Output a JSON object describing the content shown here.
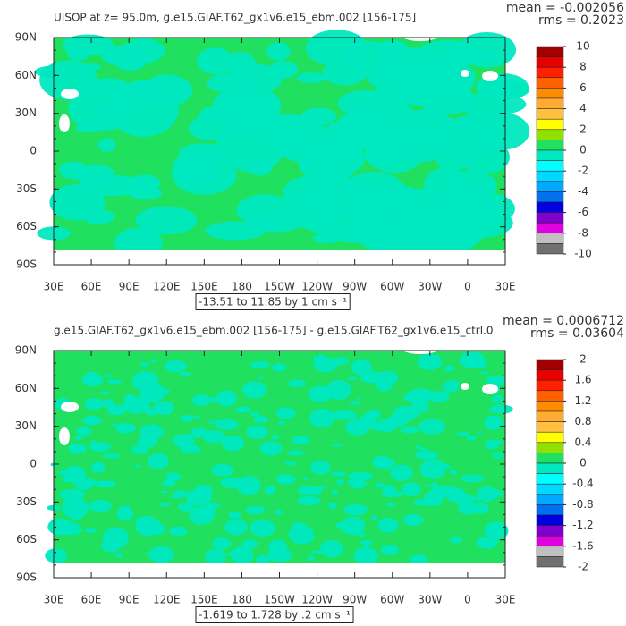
{
  "lat_labels": [
    "90N",
    "60N",
    "30N",
    "0",
    "30S",
    "60S",
    "90S"
  ],
  "lon_labels": [
    "30E",
    "60E",
    "90E",
    "120E",
    "150E",
    "180",
    "150W",
    "120W",
    "90W",
    "60W",
    "30W",
    "0",
    "30E"
  ],
  "colorbar_colors": [
    "#a00000",
    "#e60000",
    "#ff2000",
    "#ff6000",
    "#ff8c00",
    "#ffaa30",
    "#ffc040",
    "#ffff00",
    "#90e000",
    "#20e060",
    "#00e8c0",
    "#00ffff",
    "#00d8ff",
    "#00a8ff",
    "#0070f0",
    "#0000e0",
    "#8000d0",
    "#e000e0",
    "#c0c0c0",
    "#707070"
  ],
  "panels": [
    {
      "title": "UISOP at z=  95.0m, g.e15.GIAF.T62_gx1v6.e15_ebm.002 [156-175]",
      "mean": "mean = -0.002056",
      "rms": "rms = 0.2023",
      "range": "-13.51 to 11.85 by 1 cm s⁻¹",
      "colorbar_lim": [
        -10,
        10
      ],
      "colorbar_ticks": [
        10,
        8,
        6,
        4,
        2,
        0,
        -2,
        -4,
        -6,
        -8,
        -10
      ]
    },
    {
      "title": "g.e15.GIAF.T62_gx1v6.e15_ebm.002 [156-175] - g.e15.GIAF.T62_gx1v6.e15_ctrl.0",
      "mean": "mean = 0.0006712",
      "rms": "rms = 0.03604",
      "range": "-1.619 to 1.728 by .2 cm s⁻¹",
      "colorbar_lim": [
        -2,
        2
      ],
      "colorbar_ticks": [
        2,
        1.6,
        1.2,
        0.8,
        0.4,
        0,
        -0.4,
        -0.8,
        -1.2,
        -1.6,
        -2
      ]
    }
  ]
}
